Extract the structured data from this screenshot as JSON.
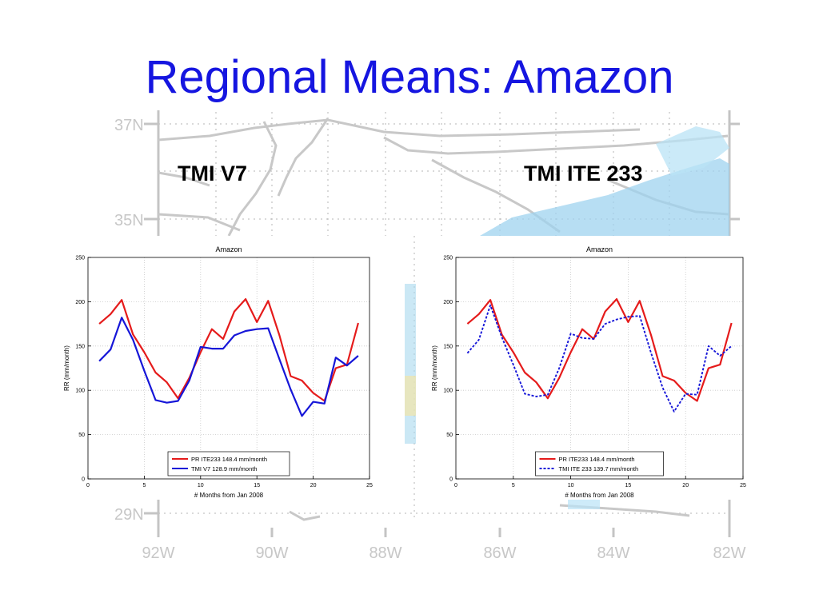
{
  "slide": {
    "title": "Regional Means: Amazon"
  },
  "background_map": {
    "lat_labels": [
      "37N",
      "35N",
      "29N"
    ],
    "lon_labels": [
      "92W",
      "90W",
      "88W",
      "86W",
      "84W",
      "82W"
    ]
  },
  "panels": {
    "left_title": "TMI V7",
    "right_title": "TMI ITE 233"
  },
  "chart_data": [
    {
      "type": "line",
      "title": "Amazon",
      "xlabel": "# Months from Jan 2008",
      "ylabel": "RR (mm/month)",
      "xlim": [
        0,
        25
      ],
      "ylim": [
        0,
        250
      ],
      "xticks": [
        0,
        5,
        10,
        15,
        20,
        25
      ],
      "yticks": [
        0,
        50,
        100,
        150,
        200,
        250
      ],
      "grid": true,
      "legend_position": "bottom-center",
      "x": [
        1,
        2,
        3,
        4,
        5,
        6,
        7,
        8,
        9,
        10,
        11,
        12,
        13,
        14,
        15,
        16,
        17,
        18,
        19,
        20,
        21,
        22,
        23,
        24
      ],
      "series": [
        {
          "name": "PR ITE233 148.4 mm/month",
          "color": "#e51b1b",
          "style": "solid",
          "values": [
            175,
            186,
            202,
            163,
            143,
            120,
            109,
            91,
            114,
            143,
            169,
            158,
            189,
            203,
            177,
            201,
            162,
            116,
            111,
            97,
            88,
            125,
            129,
            176
          ]
        },
        {
          "name": "TMI V7 128.9 mm/month",
          "color": "#1616d8",
          "style": "solid",
          "values": [
            133,
            146,
            182,
            157,
            122,
            89,
            86,
            88,
            111,
            149,
            147,
            147,
            162,
            167,
            169,
            170,
            135,
            101,
            71,
            87,
            85,
            137,
            128,
            139
          ]
        }
      ]
    },
    {
      "type": "line",
      "title": "Amazon",
      "xlabel": "# Months from Jan 2008",
      "ylabel": "RR (mm/month)",
      "xlim": [
        0,
        25
      ],
      "ylim": [
        0,
        250
      ],
      "xticks": [
        0,
        5,
        10,
        15,
        20,
        25
      ],
      "yticks": [
        0,
        50,
        100,
        150,
        200,
        250
      ],
      "grid": true,
      "legend_position": "bottom-center",
      "x": [
        1,
        2,
        3,
        4,
        5,
        6,
        7,
        8,
        9,
        10,
        11,
        12,
        13,
        14,
        15,
        16,
        17,
        18,
        19,
        20,
        21,
        22,
        23,
        24
      ],
      "series": [
        {
          "name": "PR ITE233 148.4 mm/month",
          "color": "#e51b1b",
          "style": "solid",
          "values": [
            175,
            186,
            202,
            163,
            143,
            120,
            109,
            91,
            114,
            143,
            169,
            158,
            189,
            203,
            177,
            201,
            162,
            116,
            111,
            97,
            88,
            125,
            129,
            176
          ]
        },
        {
          "name": "TMI ITE 233 139.7 mm/month",
          "color": "#1616d8",
          "style": "dashed",
          "values": [
            142,
            157,
            196,
            160,
            129,
            96,
            93,
            95,
            125,
            164,
            159,
            158,
            175,
            180,
            183,
            184,
            142,
            103,
            76,
            96,
            95,
            150,
            139,
            150
          ]
        }
      ]
    }
  ]
}
